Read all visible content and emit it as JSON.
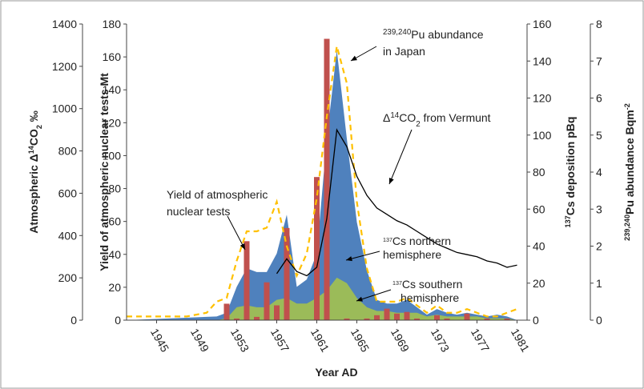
{
  "chart_data": {
    "type": "combo",
    "xlabel": "Year AD",
    "xlim": [
      1942,
      1982
    ],
    "xticks": [
      1945,
      1949,
      1953,
      1957,
      1961,
      1965,
      1969,
      1973,
      1977,
      1981
    ],
    "ylabel": [
      {
        "t": "Atmospheric Δ"
      },
      {
        "t": "14",
        "s": "sup"
      },
      {
        "t": "CO"
      },
      {
        "t": "2",
        "s": "sub"
      },
      {
        "t": " ‰"
      }
    ],
    "ylim": [
      0,
      1400
    ],
    "yticks": [
      0,
      200,
      400,
      600,
      800,
      1000,
      1200,
      1400
    ],
    "y2label": [
      {
        "t": "Yield of atmospheric nuclear tests Mt"
      }
    ],
    "y2lim": [
      0,
      180
    ],
    "y2ticks": [
      0,
      20,
      40,
      60,
      80,
      100,
      120,
      140,
      160,
      180
    ],
    "y3label": [
      {
        "t": "137",
        "s": "sup"
      },
      {
        "t": "Cs deposition pBq"
      }
    ],
    "y3lim": [
      0,
      160
    ],
    "y3ticks": [
      0,
      20,
      40,
      60,
      80,
      100,
      120,
      140,
      160
    ],
    "y4label": [
      {
        "t": "239,240",
        "s": "sup"
      },
      {
        "t": "Pu abundance Bqm"
      },
      {
        "t": "-2",
        "s": "sup"
      }
    ],
    "y4lim": [
      0,
      8
    ],
    "y4ticks": [
      0,
      1,
      2,
      3,
      4,
      5,
      6,
      7,
      8
    ],
    "series": [
      {
        "kind": "area",
        "axis": "y3",
        "color": "#4f81bd",
        "x": [
          1942,
          1951,
          1952,
          1953,
          1954,
          1955,
          1956,
          1957,
          1958,
          1959,
          1960,
          1961,
          1962,
          1963,
          1964,
          1965,
          1966,
          1967,
          1968,
          1969,
          1970,
          1971,
          1972,
          1973,
          1974,
          1975,
          1976,
          1977,
          1978,
          1979,
          1980,
          1981
        ],
        "values": [
          0,
          2,
          4,
          18,
          28,
          26,
          26,
          36,
          57,
          18,
          22,
          36,
          98,
          146,
          98,
          53,
          27,
          11,
          9,
          9,
          11,
          7,
          3,
          6,
          4,
          3,
          4,
          3,
          2,
          3,
          2,
          0
        ]
      },
      {
        "kind": "area",
        "axis": "y3",
        "color": "#9bbb59",
        "x": [
          1942,
          1951,
          1952,
          1953,
          1954,
          1955,
          1956,
          1957,
          1958,
          1959,
          1960,
          1961,
          1962,
          1963,
          1964,
          1965,
          1966,
          1967,
          1968,
          1969,
          1970,
          1971,
          1972,
          1973,
          1974,
          1975,
          1976,
          1977,
          1978,
          1979,
          1980,
          1981
        ],
        "values": [
          0,
          0,
          1,
          7,
          8,
          7,
          7,
          11,
          12,
          9,
          9,
          12,
          16,
          23,
          20,
          12,
          7,
          5,
          5,
          4,
          4,
          4,
          2,
          3,
          2,
          2,
          2,
          2,
          1,
          1,
          1,
          0
        ]
      },
      {
        "kind": "bar",
        "axis": "y2",
        "color": "#c0504d",
        "x": [
          1952,
          1953,
          1954,
          1955,
          1956,
          1957,
          1958,
          1961,
          1962,
          1964,
          1966,
          1967,
          1968,
          1969,
          1970,
          1971,
          1973,
          1974,
          1976,
          1978,
          1980
        ],
        "values": [
          10,
          1,
          48,
          2,
          23,
          9,
          56,
          87,
          171,
          1,
          1,
          3,
          7,
          4,
          5,
          1,
          3,
          1,
          4,
          1,
          1
        ]
      },
      {
        "kind": "line",
        "axis": "y4",
        "color": "#ffc000",
        "dash": true,
        "x": [
          1942,
          1948,
          1950,
          1951,
          1952,
          1953,
          1954,
          1955,
          1956,
          1957,
          1958,
          1959,
          1960,
          1961,
          1962,
          1963,
          1964,
          1965,
          1966,
          1967,
          1968,
          1969,
          1970,
          1971,
          1972,
          1973,
          1974,
          1975,
          1976,
          1977,
          1978,
          1979,
          1980,
          1981
        ],
        "values": [
          0.1,
          0.1,
          0.2,
          0.5,
          0.6,
          1.6,
          2.4,
          2.4,
          2.5,
          3.2,
          2.0,
          1.2,
          1.8,
          3.3,
          5.5,
          7.4,
          6.4,
          3.2,
          1.4,
          0.5,
          0.5,
          0.5,
          0.6,
          0.4,
          0.2,
          0.4,
          0.2,
          0.2,
          0.3,
          0.2,
          0.1,
          0.1,
          0.2,
          0.3
        ]
      },
      {
        "kind": "line",
        "axis": "y",
        "color": "#000000",
        "x": [
          1957,
          1958,
          1959,
          1960,
          1961,
          1962,
          1963,
          1964,
          1965,
          1966,
          1967,
          1968,
          1969,
          1970,
          1971,
          1972,
          1973,
          1974,
          1975,
          1976,
          1977,
          1978,
          1979,
          1980,
          1981
        ],
        "values": [
          220,
          290,
          230,
          210,
          250,
          480,
          900,
          820,
          680,
          590,
          530,
          500,
          470,
          450,
          420,
          390,
          360,
          340,
          320,
          310,
          300,
          280,
          270,
          250,
          260
        ]
      }
    ],
    "annotations": [
      {
        "lines": [
          [
            {
              "t": "239,240",
              "s": "sup"
            },
            {
              "t": "Pu abundance"
            }
          ],
          [
            {
              "t": "in Japan"
            }
          ]
        ]
      },
      {
        "lines": [
          [
            {
              "t": "Δ"
            },
            {
              "t": "14",
              "s": "sup"
            },
            {
              "t": "CO"
            },
            {
              "t": "2",
              "s": "sub"
            },
            {
              "t": " from Vermunt"
            }
          ]
        ]
      },
      {
        "lines": [
          [
            {
              "t": "Yield of atmospheric"
            }
          ],
          [
            {
              "t": "nuclear tests"
            }
          ]
        ]
      },
      {
        "lines": [
          [
            {
              "t": "137",
              "s": "sup"
            },
            {
              "t": "Cs northern"
            }
          ],
          [
            {
              "t": "hemisphere"
            }
          ]
        ]
      },
      {
        "lines": [
          [
            {
              "t": "137",
              "s": "sup"
            },
            {
              "t": "Cs southern"
            }
          ],
          [
            {
              "t": "hemisphere"
            }
          ]
        ]
      }
    ]
  }
}
